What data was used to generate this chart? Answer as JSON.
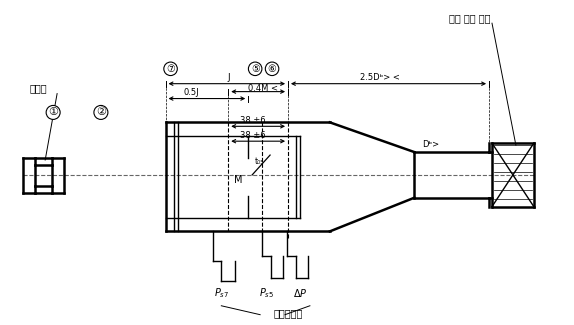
{
  "bg_color": "#ffffff",
  "line_color": "#000000",
  "text_color": "#000000",
  "fig_width": 5.74,
  "fig_height": 3.25,
  "labels": {
    "blower": "송풍기",
    "variable_device": "가변 배출 장치",
    "flow_meter": "유동진경당",
    "dim_j": "J",
    "dim_05j": "0.5J",
    "dim_04m": "0.4M <",
    "dim_25db": "2.5Dᵇ> <",
    "dim_38_6_top": "38 ±6",
    "dim_38_6_bot": "38 ±6",
    "label_m": "M",
    "label_t05": "t₀₅",
    "label_db": "Dᵇ>",
    "circle7": "⑦",
    "circle5": "⑤",
    "circle6": "⑥",
    "circle1": "①",
    "circle2": "②"
  }
}
